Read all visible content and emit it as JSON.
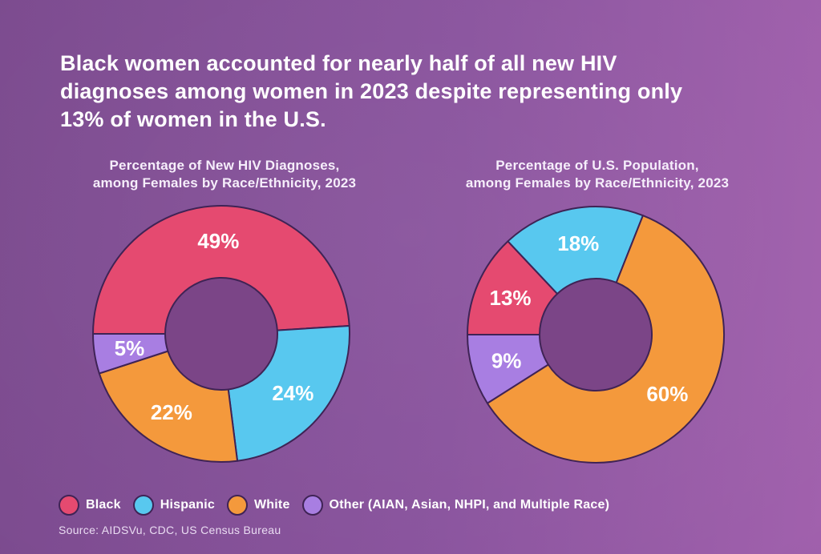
{
  "header": {
    "title": "Black women accounted for nearly half of all new HIV diagnoses among women in 2023 despite representing only 13% of women in the U.S.",
    "title_lines": [
      "Black women accounted for nearly half of all new HIV",
      "diagnoses among women in 2023 despite representing only",
      "13% of women in the U.S."
    ]
  },
  "colors": {
    "black_segment": "#e54a70",
    "hispanic_segment": "#58c8ef",
    "white_segment": "#f4993c",
    "other_segment": "#a87ee2",
    "outline": "#3f2355",
    "donut_hole": "#7b4587",
    "background_left": "#7c4b8f",
    "background_right": "#a161ad",
    "label_text": "#ffffff"
  },
  "chart_data": [
    {
      "type": "pie",
      "donut": true,
      "title": "Percentage of New HIV Diagnoses, among Females by Race/Ethnicity, 2023",
      "title_line1": "Percentage of New HIV Diagnoses,",
      "title_line2": "among Females by Race/Ethnicity, 2023",
      "start_angle_deg_clockwise_from_top": 270,
      "categories": [
        "Black",
        "Hispanic",
        "White",
        "Other (AIAN, Asian, NHPI, and Multiple Race)"
      ],
      "values": [
        49,
        24,
        22,
        5
      ],
      "segments": [
        {
          "label": "Black",
          "value": 49,
          "display": "49%",
          "color": "#e54a70"
        },
        {
          "label": "Hispanic",
          "value": 24,
          "display": "24%",
          "color": "#58c8ef"
        },
        {
          "label": "White",
          "value": 22,
          "display": "22%",
          "color": "#f4993c"
        },
        {
          "label": "Other (AIAN, Asian, NHPI, and Multiple Race)",
          "value": 5,
          "display": "5%",
          "color": "#a87ee2"
        }
      ]
    },
    {
      "type": "pie",
      "donut": true,
      "title": "Percentage of U.S. Population, among Females by Race/Ethnicity, 2023",
      "title_line1": "Percentage of U.S. Population,",
      "title_line2": "among Females by Race/Ethnicity, 2023",
      "start_angle_deg_clockwise_from_top": 237.6,
      "categories": [
        "Other (AIAN, Asian, NHPI, and Multiple Race)",
        "Black",
        "Hispanic",
        "White"
      ],
      "values": [
        9,
        13,
        18,
        60
      ],
      "segments": [
        {
          "label": "Other (AIAN, Asian, NHPI, and Multiple Race)",
          "value": 9,
          "display": "9%",
          "color": "#a87ee2"
        },
        {
          "label": "Black",
          "value": 13,
          "display": "13%",
          "color": "#e54a70"
        },
        {
          "label": "Hispanic",
          "value": 18,
          "display": "18%",
          "color": "#58c8ef"
        },
        {
          "label": "White",
          "value": 60,
          "display": "60%",
          "color": "#f4993c"
        }
      ]
    }
  ],
  "legend": [
    {
      "label": "Black",
      "color": "#e54a70"
    },
    {
      "label": "Hispanic",
      "color": "#58c8ef"
    },
    {
      "label": "White",
      "color": "#f4993c"
    },
    {
      "label": "Other (AIAN, Asian, NHPI, and Multiple Race)",
      "color": "#a87ee2"
    }
  ],
  "source": "Source: AIDSVu, CDC, US Census Bureau"
}
